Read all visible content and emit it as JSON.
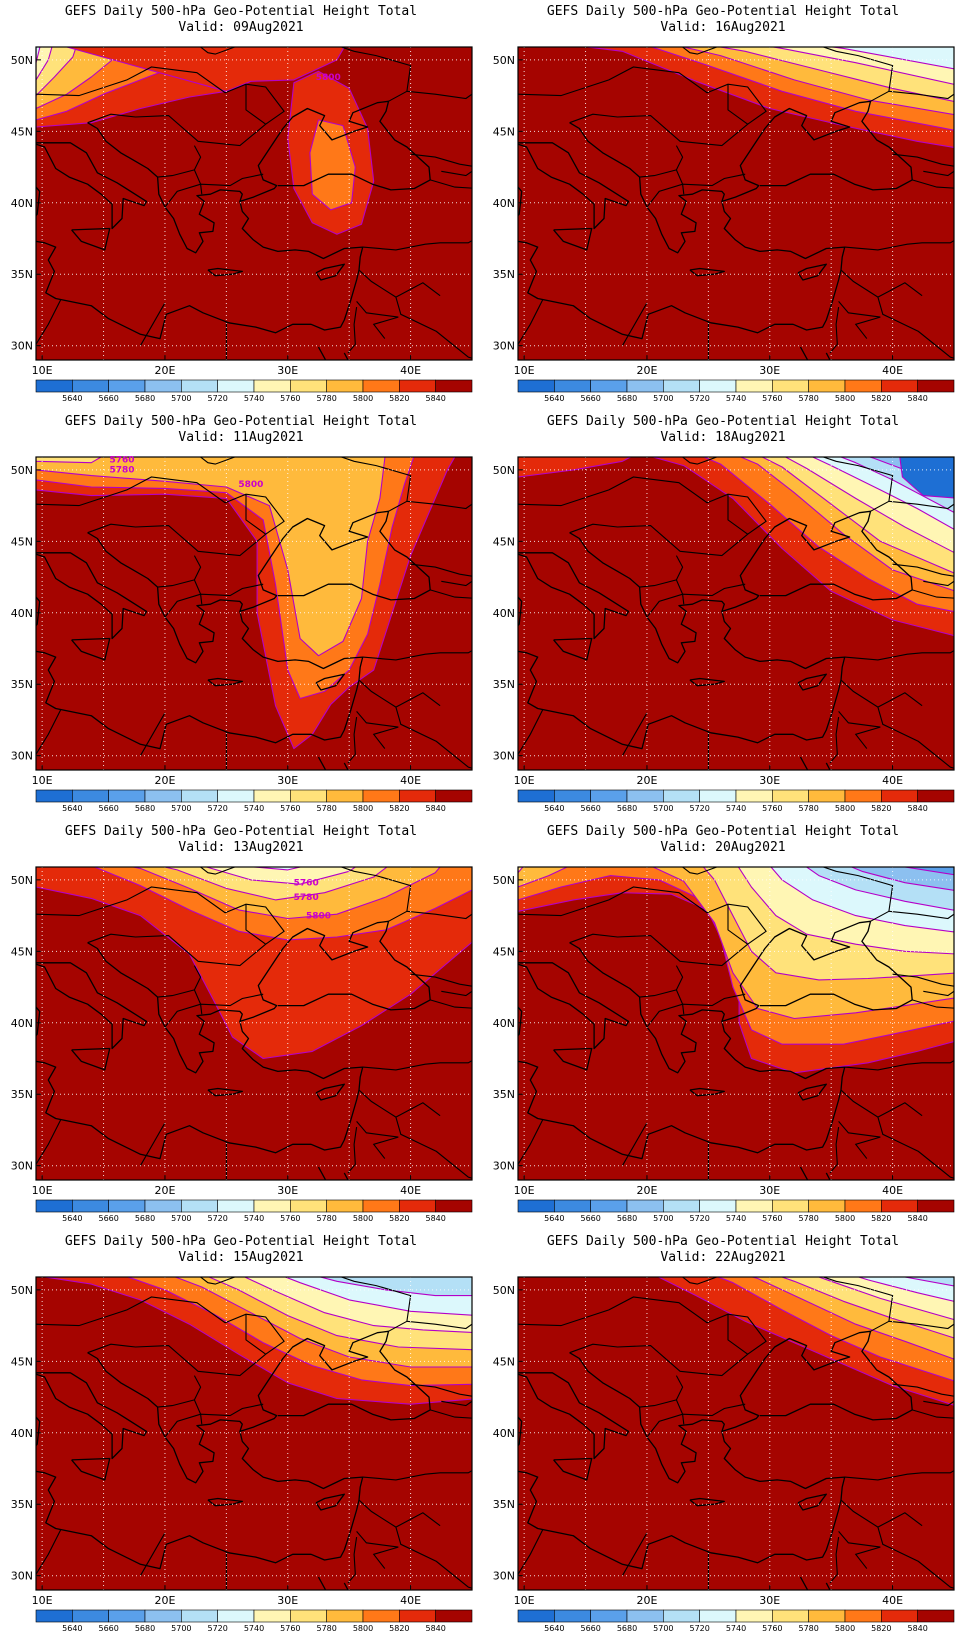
{
  "maps": [
    {
      "title": "GEFS Daily 500-hPa Geo-Potential Height Total",
      "valid": "Valid: 09Aug2021"
    },
    {
      "title": "GEFS Daily 500-hPa Geo-Potential Height Total",
      "valid": "Valid: 16Aug2021"
    },
    {
      "title": "GEFS Daily 500-hPa Geo-Potential Height Total",
      "valid": "Valid: 11Aug2021"
    },
    {
      "title": "GEFS Daily 500-hPa Geo-Potential Height Total",
      "valid": "Valid: 18Aug2021"
    },
    {
      "title": "GEFS Daily 500-hPa Geo-Potential Height Total",
      "valid": "Valid: 13Aug2021"
    },
    {
      "title": "GEFS Daily 500-hPa Geo-Potential Height Total",
      "valid": "Valid: 20Aug2021"
    },
    {
      "title": "GEFS Daily 500-hPa Geo-Potential Height Total",
      "valid": "Valid: 15Aug2021"
    },
    {
      "title": "GEFS Daily 500-hPa Geo-Potential Height Total",
      "valid": "Valid: 22Aug2021"
    }
  ],
  "lat_labels": [
    "50N",
    "45N",
    "40N",
    "35N",
    "30N"
  ],
  "lon_labels": [
    "10E",
    "20E",
    "30E",
    "40E"
  ],
  "colorbar": {
    "labels": [
      "5640",
      "5660",
      "5680",
      "5700",
      "5720",
      "5740",
      "5760",
      "5780",
      "5800",
      "5820",
      "5840"
    ],
    "colors": [
      "#1e6fd4",
      "#3c8ae0",
      "#5aa0ea",
      "#8cc0f0",
      "#b4e0f6",
      "#dcf8fc",
      "#fff6b4",
      "#ffe27a",
      "#ffba3c",
      "#ff7818",
      "#e42a0a",
      "#a50400"
    ]
  },
  "contour_labels": {
    "p0": [
      "5800"
    ],
    "p2": [
      "5760",
      "5780",
      "5800"
    ],
    "p4": [
      "5760",
      "5780",
      "5800"
    ]
  }
}
